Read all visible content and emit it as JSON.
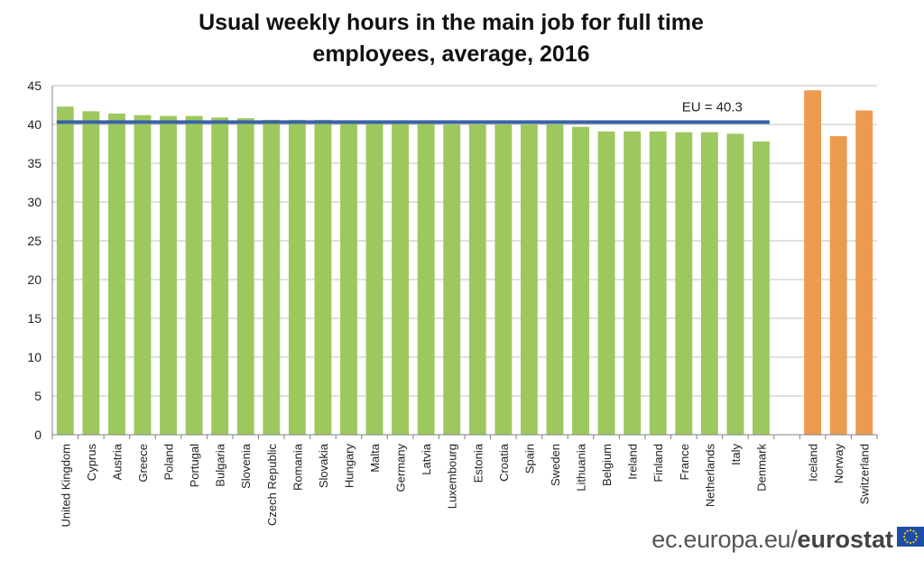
{
  "chart_data": {
    "type": "bar",
    "title_line1": "Usual weekly hours in the main job for full time",
    "title_line2": "employees, average, 2016",
    "ylim": [
      0,
      45
    ],
    "yticks": [
      0,
      5,
      10,
      15,
      20,
      25,
      30,
      35,
      40,
      45
    ],
    "grid": true,
    "categories": [
      "United Kingdom",
      "Cyprus",
      "Austria",
      "Greece",
      "Poland",
      "Portugal",
      "Bulgaria",
      "Slovenia",
      "Czech Republic",
      "Romania",
      "Slovakia",
      "Hungary",
      "Malta",
      "Germany",
      "Latvia",
      "Luxembourg",
      "Estonia",
      "Croatia",
      "Spain",
      "Sweden",
      "Lithuania",
      "Belgium",
      "Ireland",
      "Finland",
      "France",
      "Netherlands",
      "Italy",
      "Denmark",
      "Iceland",
      "Norway",
      "Switzerland"
    ],
    "values": [
      42.3,
      41.7,
      41.4,
      41.2,
      41.1,
      41.1,
      40.9,
      40.8,
      40.6,
      40.6,
      40.6,
      40.2,
      40.2,
      40.2,
      40.1,
      40.0,
      40.0,
      40.0,
      40.0,
      40.0,
      39.7,
      39.1,
      39.1,
      39.1,
      39.0,
      39.0,
      38.8,
      37.8,
      44.4,
      38.5,
      41.8
    ],
    "groups": [
      "eu",
      "eu",
      "eu",
      "eu",
      "eu",
      "eu",
      "eu",
      "eu",
      "eu",
      "eu",
      "eu",
      "eu",
      "eu",
      "eu",
      "eu",
      "eu",
      "eu",
      "eu",
      "eu",
      "eu",
      "eu",
      "eu",
      "eu",
      "eu",
      "eu",
      "eu",
      "eu",
      "eu",
      "efta",
      "efta",
      "efta"
    ],
    "eu_average": {
      "label": "EU = 40.3",
      "value": 40.3
    },
    "colors": {
      "eu": "#9DC85E",
      "efta": "#EC9A50",
      "eu_line": "#3A62A8",
      "grid": "#c0c0c0",
      "axis": "#808080"
    }
  },
  "footer": {
    "domain": "ec.europa.eu/",
    "brand": "eurostat"
  }
}
